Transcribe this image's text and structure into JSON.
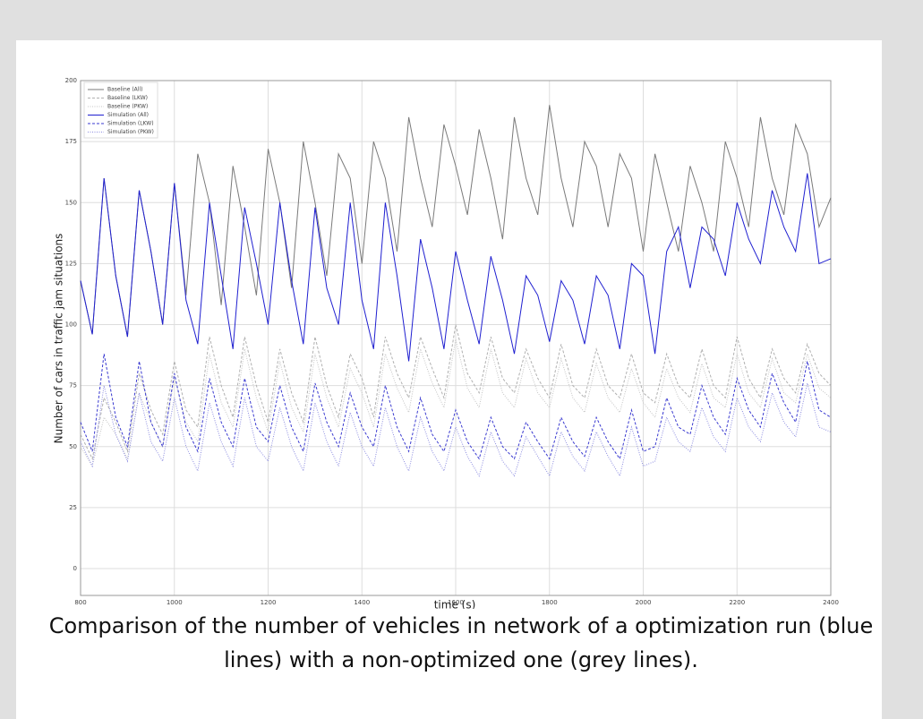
{
  "chart_data": {
    "type": "line",
    "xlabel": "time (s)",
    "ylabel": "Number of cars in traffic jam situations",
    "xlim": [
      800,
      2400
    ],
    "xticks": [
      800,
      1000,
      1200,
      1400,
      1600,
      1800,
      2000,
      2200,
      2400
    ],
    "ylim": [
      -11,
      200
    ],
    "yticks": [
      0,
      25,
      50,
      75,
      100,
      125,
      150,
      175,
      200
    ],
    "grid": true,
    "legend": "upper left",
    "x": [
      800,
      825,
      850,
      875,
      900,
      925,
      950,
      975,
      1000,
      1025,
      1050,
      1075,
      1100,
      1125,
      1150,
      1175,
      1200,
      1225,
      1250,
      1275,
      1300,
      1325,
      1350,
      1375,
      1400,
      1425,
      1450,
      1475,
      1500,
      1525,
      1550,
      1575,
      1600,
      1625,
      1650,
      1675,
      1700,
      1725,
      1750,
      1775,
      1800,
      1825,
      1850,
      1875,
      1900,
      1925,
      1950,
      1975,
      2000,
      2025,
      2050,
      2075,
      2100,
      2125,
      2150,
      2175,
      2200,
      2225,
      2250,
      2275,
      2300,
      2325,
      2350,
      2375,
      2400
    ],
    "series": [
      {
        "name": "Baseline (All)",
        "color": "#7a7a7a",
        "style": "solid",
        "values": [
          118,
          96,
          160,
          120,
          95,
          155,
          130,
          100,
          158,
          112,
          170,
          150,
          108,
          165,
          140,
          112,
          172,
          150,
          115,
          175,
          150,
          120,
          170,
          160,
          125,
          175,
          160,
          130,
          185,
          160,
          140,
          182,
          165,
          145,
          180,
          160,
          135,
          185,
          160,
          145,
          190,
          160,
          140,
          175,
          165,
          140,
          170,
          160,
          130,
          170,
          150,
          130,
          165,
          150,
          130,
          175,
          160,
          140,
          185,
          160,
          145,
          182,
          170,
          140,
          152
        ]
      },
      {
        "name": "Baseline (LKW)",
        "color": "#b0b0b0",
        "style": "dashed",
        "values": [
          55,
          45,
          70,
          60,
          48,
          80,
          65,
          55,
          85,
          65,
          58,
          95,
          75,
          62,
          95,
          75,
          60,
          90,
          72,
          60,
          95,
          75,
          62,
          88,
          78,
          62,
          95,
          80,
          70,
          95,
          82,
          70,
          100,
          80,
          72,
          95,
          78,
          72,
          90,
          78,
          70,
          92,
          75,
          70,
          90,
          75,
          70,
          88,
          72,
          68,
          88,
          75,
          70,
          90,
          75,
          70,
          95,
          78,
          70,
          90,
          78,
          72,
          92,
          80,
          75
        ]
      },
      {
        "name": "Baseline (PKW)",
        "color": "#c4c4c4",
        "style": "dotted",
        "values": [
          50,
          42,
          62,
          55,
          45,
          72,
          60,
          50,
          78,
          60,
          52,
          88,
          68,
          58,
          90,
          70,
          56,
          85,
          66,
          56,
          88,
          70,
          58,
          82,
          72,
          58,
          88,
          74,
          64,
          90,
          76,
          66,
          94,
          74,
          66,
          90,
          72,
          66,
          86,
          72,
          66,
          86,
          70,
          64,
          84,
          70,
          64,
          82,
          68,
          62,
          82,
          70,
          64,
          84,
          70,
          66,
          88,
          72,
          66,
          86,
          72,
          68,
          88,
          74,
          70
        ]
      },
      {
        "name": "Simulation (All)",
        "color": "#1f1fd0",
        "style": "solid",
        "values": [
          118,
          96,
          160,
          120,
          95,
          155,
          130,
          100,
          158,
          110,
          92,
          150,
          120,
          90,
          148,
          125,
          100,
          150,
          118,
          92,
          148,
          115,
          100,
          150,
          110,
          90,
          150,
          120,
          85,
          135,
          115,
          90,
          130,
          110,
          92,
          128,
          110,
          88,
          120,
          112,
          93,
          118,
          110,
          92,
          120,
          112,
          90,
          125,
          120,
          88,
          130,
          140,
          115,
          140,
          135,
          120,
          150,
          135,
          125,
          155,
          140,
          130,
          162,
          125,
          127
        ]
      },
      {
        "name": "Simulation (LKW)",
        "color": "#3a3ad0",
        "style": "dashed",
        "values": [
          60,
          48,
          88,
          62,
          50,
          85,
          60,
          50,
          80,
          58,
          48,
          78,
          60,
          50,
          78,
          58,
          52,
          75,
          58,
          48,
          76,
          60,
          50,
          72,
          58,
          50,
          75,
          58,
          48,
          70,
          55,
          48,
          65,
          52,
          45,
          62,
          50,
          45,
          60,
          52,
          45,
          62,
          52,
          46,
          62,
          52,
          45,
          65,
          48,
          50,
          70,
          58,
          55,
          75,
          62,
          55,
          78,
          65,
          58,
          80,
          68,
          60,
          85,
          65,
          62
        ]
      },
      {
        "name": "Simulation (PKW)",
        "color": "#8c8ce0",
        "style": "dotted",
        "values": [
          52,
          42,
          75,
          55,
          44,
          72,
          52,
          44,
          70,
          50,
          40,
          68,
          52,
          42,
          70,
          50,
          44,
          66,
          50,
          40,
          68,
          52,
          42,
          64,
          50,
          42,
          66,
          50,
          40,
          62,
          48,
          40,
          58,
          46,
          38,
          56,
          44,
          38,
          54,
          46,
          38,
          56,
          46,
          40,
          56,
          46,
          38,
          58,
          42,
          44,
          62,
          52,
          48,
          66,
          54,
          48,
          70,
          58,
          52,
          72,
          60,
          54,
          76,
          58,
          56
        ]
      }
    ]
  },
  "caption": "Comparison of the number of vehicles in network of a optimization run (blue lines) with a non-optimized one (grey lines)."
}
